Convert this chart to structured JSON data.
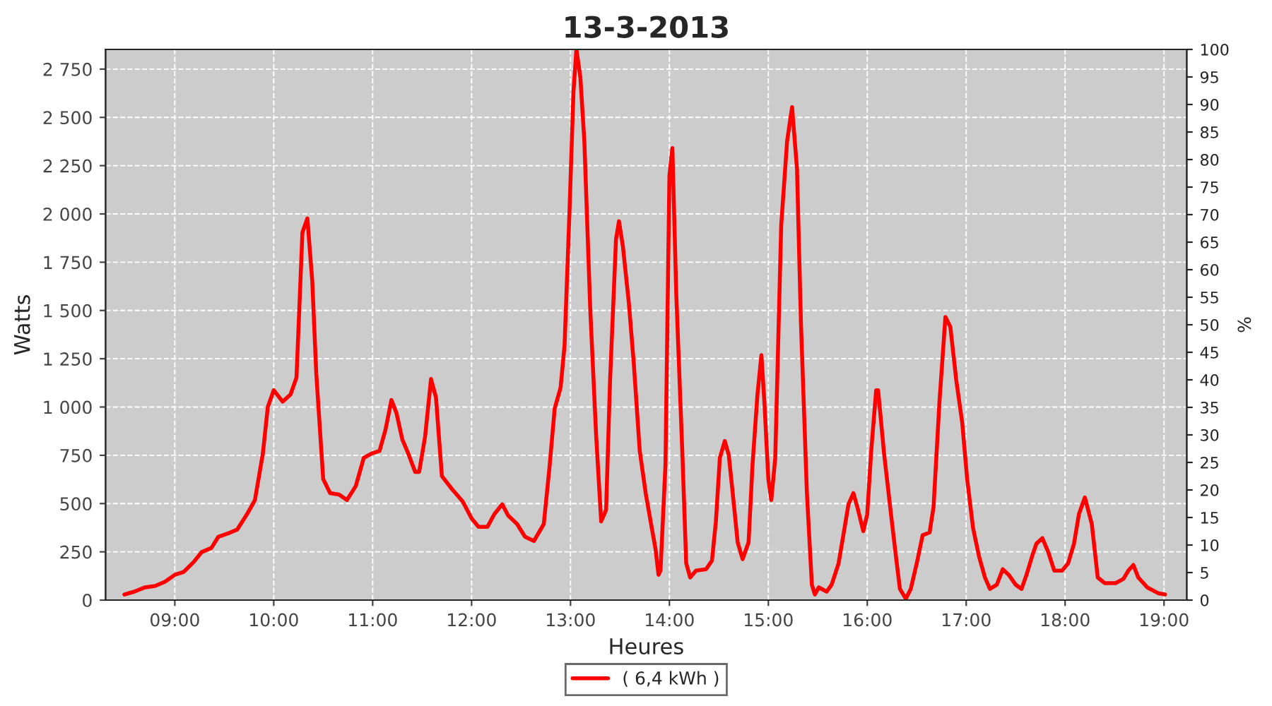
{
  "chart_data": {
    "type": "line",
    "title": "13-3-2013",
    "xlabel": "Heures",
    "ylabel": "Watts",
    "y2label": "%",
    "xlim": [
      8.3,
      19.23
    ],
    "xticks": [
      {
        "value": 9,
        "label": "09:00"
      },
      {
        "value": 10,
        "label": "10:00"
      },
      {
        "value": 11,
        "label": "11:00"
      },
      {
        "value": 12,
        "label": "12:00"
      },
      {
        "value": 13,
        "label": "13:00"
      },
      {
        "value": 14,
        "label": "14:00"
      },
      {
        "value": 15,
        "label": "15:00"
      },
      {
        "value": 16,
        "label": "16:00"
      },
      {
        "value": 17,
        "label": "17:00"
      },
      {
        "value": 18,
        "label": "18:00"
      },
      {
        "value": 19,
        "label": "19:00"
      }
    ],
    "ylim": [
      0,
      2852
    ],
    "yticks": [
      0,
      250,
      500,
      750,
      {
        "value": 1000,
        "label": "1 000"
      },
      {
        "value": 1250,
        "label": "1 250"
      },
      {
        "value": 1500,
        "label": "1 500"
      },
      {
        "value": 1750,
        "label": "1 750"
      },
      {
        "value": 2000,
        "label": "2 000"
      },
      {
        "value": 2250,
        "label": "2 250"
      },
      {
        "value": 2500,
        "label": "2 500"
      },
      {
        "value": 2750,
        "label": "2 750"
      }
    ],
    "y2lim": [
      0,
      100
    ],
    "y2ticks": [
      0,
      5,
      10,
      15,
      20,
      25,
      30,
      35,
      40,
      45,
      50,
      55,
      60,
      65,
      70,
      75,
      80,
      85,
      90,
      95,
      100
    ],
    "grid": true,
    "legend": "bottom",
    "marker": "none",
    "line_style": "solid",
    "series": [
      {
        "name": "( 6,4 kWh )",
        "color": "#ff0000",
        "x": [
          8.49,
          8.59,
          8.7,
          8.8,
          8.9,
          9.0,
          9.09,
          9.19,
          9.27,
          9.37,
          9.44,
          9.56,
          9.63,
          9.73,
          9.81,
          9.89,
          9.94,
          10.0,
          10.09,
          10.17,
          10.23,
          10.29,
          10.34,
          10.39,
          10.43,
          10.5,
          10.57,
          10.66,
          10.74,
          10.83,
          10.91,
          10.99,
          11.07,
          11.13,
          11.19,
          11.24,
          11.3,
          11.36,
          11.43,
          11.47,
          11.53,
          11.59,
          11.64,
          11.7,
          11.8,
          11.91,
          12.0,
          12.07,
          12.16,
          12.23,
          12.31,
          12.37,
          12.46,
          12.54,
          12.63,
          12.73,
          12.79,
          12.84,
          12.9,
          12.94,
          12.99,
          13.03,
          13.06,
          13.1,
          13.14,
          13.2,
          13.26,
          13.31,
          13.36,
          13.4,
          13.46,
          13.49,
          13.53,
          13.59,
          13.64,
          13.7,
          13.76,
          13.81,
          13.86,
          13.89,
          13.91,
          13.96,
          14.0,
          14.03,
          14.07,
          14.13,
          14.17,
          14.21,
          14.27,
          14.37,
          14.43,
          14.47,
          14.51,
          14.56,
          14.6,
          14.64,
          14.69,
          14.74,
          14.8,
          14.84,
          14.89,
          14.93,
          14.96,
          15.0,
          15.03,
          15.07,
          15.13,
          15.19,
          15.24,
          15.29,
          15.33,
          15.39,
          15.44,
          15.47,
          15.51,
          15.59,
          15.64,
          15.71,
          15.77,
          15.81,
          15.86,
          15.9,
          15.96,
          16.0,
          16.04,
          16.09,
          16.11,
          16.17,
          16.24,
          16.29,
          16.33,
          16.39,
          16.44,
          16.5,
          16.56,
          16.63,
          16.67,
          16.73,
          16.79,
          16.84,
          16.9,
          16.96,
          17.01,
          17.07,
          17.13,
          17.19,
          17.24,
          17.31,
          17.37,
          17.43,
          17.5,
          17.56,
          17.61,
          17.67,
          17.71,
          17.77,
          17.83,
          17.89,
          17.97,
          18.03,
          18.09,
          18.14,
          18.2,
          18.27,
          18.33,
          18.4,
          18.51,
          18.59,
          18.64,
          18.69,
          18.74,
          18.83,
          18.94,
          19.01
        ],
        "values": [
          29,
          44,
          66,
          73,
          95,
          131,
          146,
          197,
          248,
          270,
          328,
          350,
          365,
          445,
          518,
          759,
          1000,
          1087,
          1028,
          1065,
          1152,
          1904,
          1977,
          1649,
          1174,
          627,
          554,
          547,
          518,
          591,
          737,
          759,
          773,
          883,
          1036,
          970,
          832,
          759,
          664,
          664,
          846,
          1145,
          1050,
          642,
          576,
          511,
          423,
          379,
          379,
          445,
          496,
          438,
          394,
          328,
          306,
          394,
          700,
          992,
          1101,
          1320,
          2013,
          2633,
          2852,
          2706,
          2378,
          1503,
          846,
          408,
          467,
          1138,
          1868,
          1962,
          1831,
          1539,
          1225,
          773,
          554,
          408,
          263,
          131,
          153,
          700,
          2196,
          2341,
          1576,
          773,
          190,
          117,
          153,
          160,
          204,
          408,
          737,
          824,
          751,
          554,
          299,
          212,
          299,
          700,
          1065,
          1269,
          1028,
          627,
          518,
          737,
          1940,
          2378,
          2553,
          2232,
          1430,
          554,
          80,
          29,
          66,
          44,
          80,
          190,
          372,
          496,
          554,
          481,
          357,
          445,
          773,
          1087,
          1087,
          759,
          445,
          226,
          58,
          7,
          58,
          190,
          336,
          350,
          481,
          1028,
          1466,
          1415,
          1138,
          919,
          627,
          372,
          226,
          117,
          58,
          80,
          160,
          131,
          80,
          58,
          131,
          233,
          292,
          321,
          248,
          153,
          153,
          190,
          292,
          445,
          532,
          394,
          117,
          88,
          88,
          110,
          153,
          182,
          117,
          66,
          36,
          29
        ]
      }
    ]
  }
}
